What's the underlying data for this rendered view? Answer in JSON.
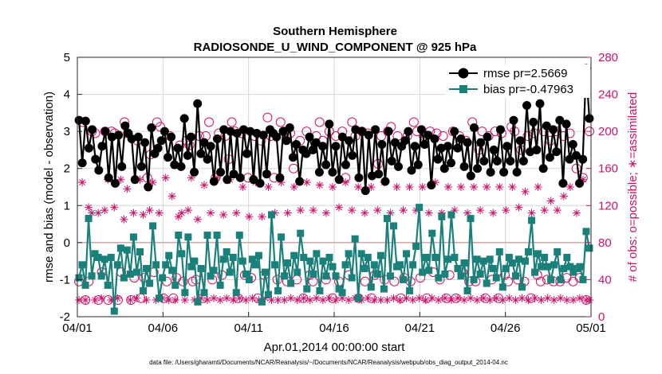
{
  "chart_data": {
    "type": "line",
    "title": "Southern Hemisphere",
    "subtitle": "RADIOSONDE_U_WIND_COMPONENT @ 925 hPa",
    "xlabel": "Apr.01,2014 00:00:00 start",
    "ylabel": "rmse and bias (model - observation)",
    "y2label": "# of obs: o=possible; ∗=assimilated",
    "footnote": "data file: /Users/gharamti/Documents/NCAR/Reanalysis/~/Documents/NCAR/Reanalysis/webpub/obs_diag_output_2014-04.nc",
    "xlim": [
      0,
      30
    ],
    "ylim": [
      -2,
      5
    ],
    "y2lim": [
      0,
      280
    ],
    "xticks": [
      0,
      5,
      10,
      15,
      20,
      25,
      30
    ],
    "xtick_labels": [
      "04/01",
      "04/06",
      "04/11",
      "04/16",
      "04/21",
      "04/26",
      "05/01"
    ],
    "yticks": [
      -2,
      -1,
      0,
      1,
      2,
      3,
      4,
      5
    ],
    "y2ticks": [
      0,
      40,
      80,
      120,
      160,
      200,
      240,
      280
    ],
    "grid": true,
    "legend": {
      "position": "top-right",
      "entries": [
        "rmse pr=2.5669",
        "bias pr=-0.47963"
      ]
    },
    "colors": {
      "rmse": "#000000",
      "bias": "#1a807a",
      "obs": "#d0116a",
      "zero": "#c8a8a8"
    },
    "series": [
      {
        "name": "rmse pr=2.5669",
        "axis": "left",
        "marker": "circle",
        "values": [
          3.3,
          2.15,
          3.28,
          2.55,
          3.05,
          2.25,
          1.95,
          2.6,
          3.0,
          1.75,
          2.85,
          1.6,
          2.9,
          2.05,
          3.15,
          2.95,
          2.8,
          1.7,
          2.85,
          2.05,
          2.7,
          1.5,
          3.1,
          2.4,
          2.55,
          2.75,
          3.0,
          2.3,
          2.85,
          2.1,
          2.55,
          2.05,
          3.35,
          2.35,
          2.85,
          1.9,
          3.75,
          2.4,
          2.7,
          2.25,
          2.6,
          1.65,
          2.8,
          1.9,
          3.05,
          1.7,
          3.0,
          1.85,
          2.95,
          1.75,
          3.05,
          2.4,
          3.0,
          1.7,
          2.95,
          1.6,
          2.9,
          1.85,
          3.05,
          2.95,
          2.85,
          1.75,
          3.0,
          2.75,
          3.1,
          2.3,
          2.65,
          1.65,
          2.5,
          2.4,
          2.85,
          2.5,
          2.7,
          1.9,
          2.6,
          2.1,
          3.2,
          1.9,
          2.6,
          1.7,
          2.85,
          2.1,
          2.75,
          2.35,
          3.05,
          1.75,
          3.0,
          1.4,
          2.9,
          1.8,
          3.05,
          1.85,
          2.65,
          1.65,
          3.0,
          2.2,
          2.7,
          2.05,
          2.6,
          2.75,
          3.0,
          1.95,
          2.6,
          2.1,
          3.05,
          2.65,
          2.9,
          1.55,
          2.8,
          2.25,
          2.55,
          2.0,
          2.6,
          2.15,
          3.0,
          2.55,
          2.8,
          2.05,
          2.7,
          1.8,
          3.1,
          2.0,
          2.7,
          2.2,
          2.85,
          1.9,
          2.5,
          2.2,
          3.05,
          1.9,
          2.6,
          2.2,
          3.3,
          1.9,
          2.75,
          2.2,
          3.7,
          2.45,
          3.25,
          2.5,
          3.75,
          2.0,
          3.15,
          2.3,
          3.05,
          2.45,
          3.3,
          1.6,
          3.2,
          2.25,
          2.65,
          2.35,
          1.6,
          2.25,
          4.7,
          3.35
        ]
      },
      {
        "name": "bias pr=-0.47963",
        "axis": "left",
        "marker": "square",
        "values": [
          -0.95,
          -0.6,
          -1.15,
          0.65,
          -0.9,
          -0.3,
          -0.4,
          -0.9,
          -0.45,
          -1.15,
          -0.4,
          -1.85,
          -0.6,
          -0.15,
          -0.95,
          -0.2,
          -0.85,
          0.15,
          -0.8,
          -0.25,
          -1.3,
          -0.7,
          -1.1,
          0.45,
          -0.6,
          -1.5,
          -0.95,
          -0.6,
          -0.35,
          -0.75,
          -1.15,
          0.2,
          -0.3,
          -1.35,
          0.15,
          -0.65,
          -0.5,
          -1.6,
          -0.7,
          -1.35,
          0.2,
          -0.9,
          -0.75,
          0.2,
          -1.15,
          -0.45,
          -0.25,
          -0.8,
          -0.4,
          -1.35,
          0.2,
          -0.5,
          -0.85,
          -1.0,
          -0.45,
          -0.6,
          -0.35,
          -1.6,
          -0.8,
          -1.4,
          0.75,
          -0.6,
          -1.3,
          0.15,
          -0.9,
          -0.55,
          -1.1,
          -0.35,
          -0.8,
          0.25,
          -0.4,
          -1.25,
          -0.5,
          -0.85,
          -0.3,
          -1.3,
          -0.5,
          -0.9,
          -0.4,
          -0.65,
          -0.9,
          -1.25,
          -1.35,
          -0.6,
          -0.3,
          -0.95,
          0.1,
          -1.5,
          -0.3,
          -0.7,
          -0.4,
          -1.2,
          -0.6,
          -0.85,
          -0.35,
          -1.25,
          0.65,
          -0.9,
          0.45,
          -0.65,
          -0.6,
          -1.0,
          -0.3,
          -1.3,
          -0.6,
          -0.1,
          0.95,
          -0.8,
          -0.4,
          -0.75,
          0.25,
          -0.4,
          -0.95,
          0.7,
          -0.85,
          -0.45,
          0.75,
          -0.4,
          -0.7,
          -0.9,
          -0.55,
          -1.3,
          0.65,
          -1.0,
          -0.45,
          -0.85,
          -0.5,
          -1.1,
          -0.45,
          -0.7,
          -0.95,
          -0.25,
          -1.2,
          -0.7,
          -0.4,
          -0.55,
          -0.9,
          -0.45,
          -1.2,
          -0.5,
          -0.25,
          0.6,
          -0.8,
          -0.3,
          -0.65,
          -0.4,
          -0.65,
          -1.0,
          -0.6,
          -0.25,
          -1.0,
          -0.7,
          -0.4,
          -0.65,
          -0.8,
          -0.7,
          -0.65,
          -1.0,
          0.3,
          -0.15
        ]
      },
      {
        "name": "possible",
        "axis": "right",
        "marker": "open-circle",
        "values": [
          38,
          210,
          18,
          38,
          200,
          198,
          18,
          48,
          200,
          18,
          200,
          198,
          18,
          48,
          210,
          198,
          18,
          42,
          190,
          20,
          42,
          150,
          175,
          48,
          210,
          205,
          20,
          38,
          195,
          20,
          42,
          185,
          38,
          190,
          185,
          38,
          40,
          195,
          20,
          195,
          210,
          40,
          150,
          198,
          45,
          195,
          170,
          210,
          200,
          20,
          198,
          45,
          150,
          42,
          195,
          20,
          190,
          45,
          215,
          195,
          150,
          40,
          210,
          200,
          38,
          198,
          160,
          40,
          190,
          20,
          200,
          45,
          38,
          195,
          210,
          190,
          40,
          200,
          20,
          195,
          38,
          200,
          150,
          45,
          210,
          195,
          20,
          200,
          38,
          198,
          20,
          45,
          165,
          195,
          40,
          200,
          205,
          38,
          195,
          20,
          42,
          195,
          38,
          210,
          200,
          42,
          195,
          20,
          200,
          48,
          198,
          40,
          195,
          20,
          45,
          200,
          20,
          195,
          48,
          190,
          38,
          210,
          38,
          180,
          200,
          20,
          195,
          40,
          200,
          20,
          198,
          45,
          38,
          205,
          200,
          40,
          180,
          38,
          195,
          20,
          198,
          45,
          38,
          200,
          40,
          190,
          38,
          200,
          38,
          195,
          42,
          198,
          38,
          160,
          42,
          150,
          18,
          200
        ]
      },
      {
        "name": "assimilated",
        "axis": "right",
        "marker": "asterisk",
        "values": [
          18,
          145,
          18,
          118,
          112,
          18,
          112,
          20,
          115,
          148,
          18,
          118,
          20,
          148,
          105,
          138,
          18,
          112,
          20,
          148,
          110,
          18,
          115,
          145,
          18,
          112,
          20,
          150,
          18,
          130,
          18,
          108,
          112,
          18,
          115,
          150,
          18,
          105,
          20,
          142,
          18,
          112,
          20,
          150,
          18,
          110,
          20,
          148,
          18,
          112,
          20,
          140,
          18,
          108,
          20,
          145,
          18,
          108,
          20,
          140,
          18,
          112,
          18,
          145,
          18,
          112,
          20,
          140,
          18,
          115,
          20,
          145,
          18,
          115,
          20,
          142,
          18,
          112,
          20,
          140,
          18,
          118,
          20,
          145,
          18,
          115,
          20,
          140,
          18,
          112,
          20,
          140,
          18,
          115,
          18,
          145,
          18,
          112,
          20,
          140,
          18,
          115,
          20,
          140,
          18,
          115,
          20,
          140,
          18,
          112,
          20,
          145,
          18,
          112,
          20,
          140,
          18,
          115,
          20,
          140,
          18,
          112,
          20,
          140,
          18,
          115,
          20,
          140,
          18,
          112,
          20,
          140,
          18,
          115,
          20,
          140,
          18,
          118,
          20,
          135,
          18,
          112,
          20,
          140,
          18,
          115,
          20,
          125,
          18,
          115,
          20,
          130,
          18,
          140,
          18,
          112,
          20,
          148,
          18,
          18
        ]
      }
    ]
  }
}
